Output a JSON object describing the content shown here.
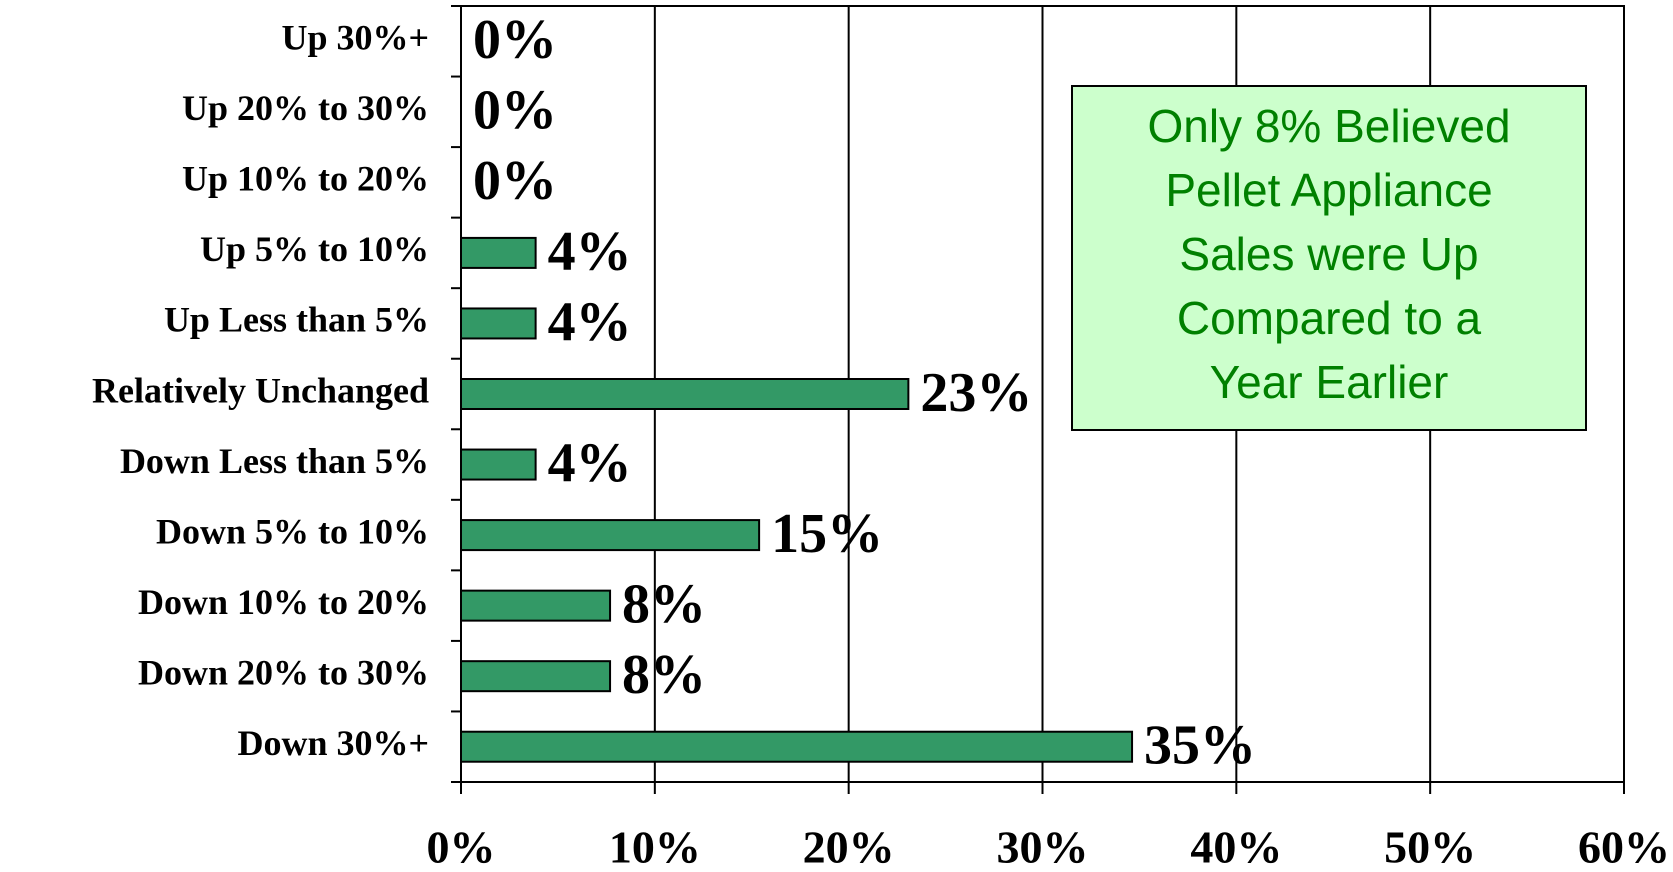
{
  "chart_data": {
    "type": "bar",
    "orientation": "horizontal",
    "categories": [
      "Up 30%+",
      "Up 20% to 30%",
      "Up 10% to 20%",
      "Up 5% to 10%",
      "Up Less than 5%",
      "Relatively Unchanged",
      "Down Less than 5%",
      "Down 5% to 10%",
      "Down 10% to 20%",
      "Down 20% to 30%",
      "Down 30%+"
    ],
    "values": [
      0,
      0,
      0,
      3.85,
      3.85,
      23.08,
      3.85,
      15.38,
      7.69,
      7.69,
      34.62
    ],
    "value_labels": [
      "0%",
      "0%",
      "0%",
      "4%",
      "4%",
      "23%",
      "4%",
      "15%",
      "8%",
      "8%",
      "35%"
    ],
    "color": "#339966",
    "xlim": [
      0,
      60
    ],
    "xticks": [
      {
        "value": 0,
        "label": "0%"
      },
      {
        "value": 10,
        "label": "10%"
      },
      {
        "value": 20,
        "label": "20%"
      },
      {
        "value": 30,
        "label": "30%"
      },
      {
        "value": 40,
        "label": "40%"
      },
      {
        "value": 50,
        "label": "50%"
      },
      {
        "value": 60,
        "label": "60%"
      }
    ],
    "grid": true,
    "annotation": {
      "lines": [
        "Only 8% Believed",
        "Pellet Appliance",
        "Sales were Up",
        "Compared to a",
        "Year Earlier"
      ],
      "fill": "#ccffcc",
      "color": "#008000"
    }
  }
}
